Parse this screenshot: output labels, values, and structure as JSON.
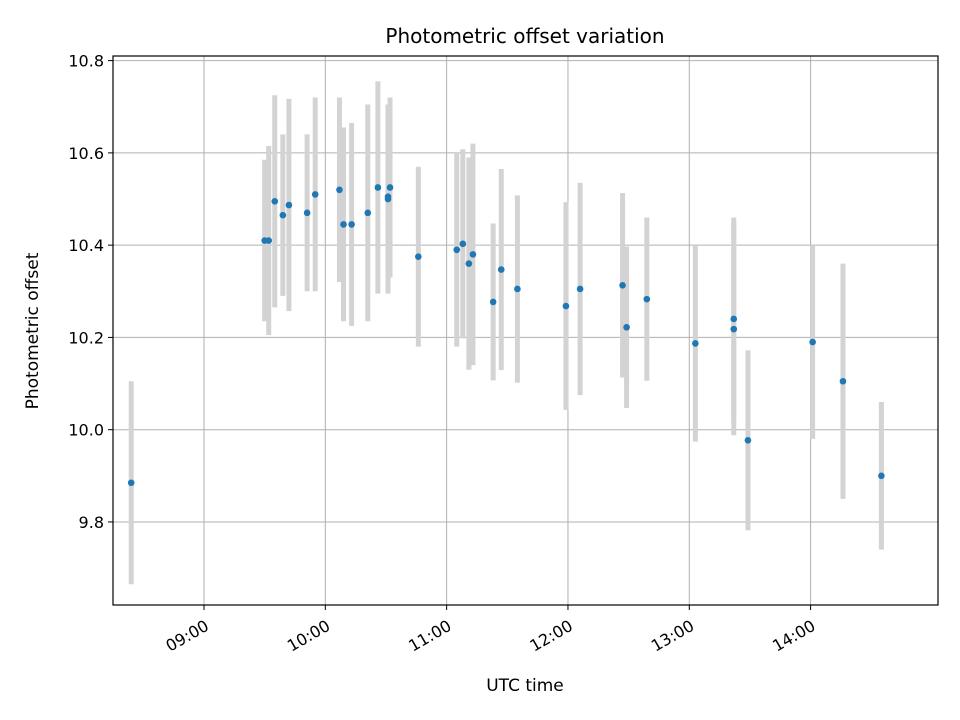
{
  "chart_data": {
    "type": "scatter",
    "title": "Photometric offset variation",
    "xlabel": "UTC time",
    "ylabel": "Photometric offset",
    "x_ticks": [
      "09:00",
      "10:00",
      "11:00",
      "12:00",
      "13:00",
      "14:00"
    ],
    "y_ticks": [
      "9.8",
      "10.0",
      "10.2",
      "10.4",
      "10.6",
      "10.8"
    ],
    "xlim": [
      "08:15",
      "15:03"
    ],
    "ylim": [
      9.62,
      10.81
    ],
    "grid": true,
    "errorbars": true,
    "colors": {
      "points": "#1f77b4",
      "errorbars": "#d3d3d3",
      "grid": "#b0b0b0"
    },
    "points": [
      {
        "x": "08:24",
        "y": 9.885,
        "err": 0.22
      },
      {
        "x": "09:30",
        "y": 10.41,
        "err": 0.175
      },
      {
        "x": "09:32",
        "y": 10.41,
        "err": 0.205
      },
      {
        "x": "09:35",
        "y": 10.495,
        "err": 0.23
      },
      {
        "x": "09:39",
        "y": 10.465,
        "err": 0.175
      },
      {
        "x": "09:42",
        "y": 10.487,
        "err": 0.23
      },
      {
        "x": "09:51",
        "y": 10.47,
        "err": 0.17
      },
      {
        "x": "09:55",
        "y": 10.51,
        "err": 0.21
      },
      {
        "x": "10:07",
        "y": 10.52,
        "err": 0.2
      },
      {
        "x": "10:09",
        "y": 10.445,
        "err": 0.21
      },
      {
        "x": "10:13",
        "y": 10.445,
        "err": 0.22
      },
      {
        "x": "10:21",
        "y": 10.47,
        "err": 0.235
      },
      {
        "x": "10:26",
        "y": 10.525,
        "err": 0.23
      },
      {
        "x": "10:31",
        "y": 10.5,
        "err": 0.205
      },
      {
        "x": "10:31",
        "y": 10.505,
        "err": 0.175
      },
      {
        "x": "10:32",
        "y": 10.525,
        "err": 0.195
      },
      {
        "x": "10:46",
        "y": 10.375,
        "err": 0.195
      },
      {
        "x": "11:05",
        "y": 10.39,
        "err": 0.21
      },
      {
        "x": "11:08",
        "y": 10.403,
        "err": 0.205
      },
      {
        "x": "11:11",
        "y": 10.36,
        "err": 0.23
      },
      {
        "x": "11:13",
        "y": 10.38,
        "err": 0.24
      },
      {
        "x": "11:23",
        "y": 10.277,
        "err": 0.17
      },
      {
        "x": "11:27",
        "y": 10.347,
        "err": 0.218
      },
      {
        "x": "11:35",
        "y": 10.305,
        "err": 0.203
      },
      {
        "x": "11:59",
        "y": 10.268,
        "err": 0.225
      },
      {
        "x": "12:06",
        "y": 10.305,
        "err": 0.23
      },
      {
        "x": "12:27",
        "y": 10.313,
        "err": 0.2
      },
      {
        "x": "12:29",
        "y": 10.222,
        "err": 0.175
      },
      {
        "x": "12:39",
        "y": 10.283,
        "err": 0.177
      },
      {
        "x": "13:03",
        "y": 10.187,
        "err": 0.213
      },
      {
        "x": "13:22",
        "y": 10.24,
        "err": 0.22
      },
      {
        "x": "13:22",
        "y": 10.218,
        "err": 0.23
      },
      {
        "x": "13:29",
        "y": 9.977,
        "err": 0.195
      },
      {
        "x": "14:01",
        "y": 10.19,
        "err": 0.21
      },
      {
        "x": "14:16",
        "y": 10.105,
        "err": 0.255
      },
      {
        "x": "14:35",
        "y": 9.9,
        "err": 0.16
      }
    ]
  }
}
